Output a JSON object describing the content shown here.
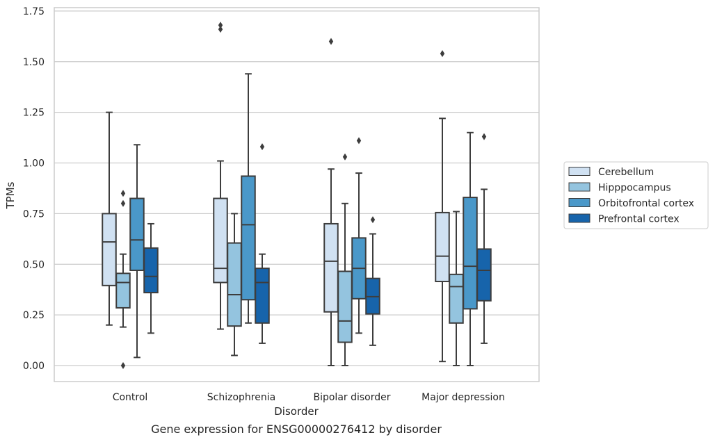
{
  "chart_data": {
    "type": "box",
    "caption": "Gene expression for ENSG00000276412 by disorder",
    "xlabel": "Disorder",
    "ylabel": "TPMs",
    "ylim": [
      -0.08,
      1.77
    ],
    "yticks": [
      0.0,
      0.25,
      0.5,
      0.75,
      1.0,
      1.25,
      1.5,
      1.75
    ],
    "ytick_labels": [
      "0.00",
      "0.25",
      "0.50",
      "0.75",
      "1.00",
      "1.25",
      "1.50",
      "1.75"
    ],
    "grid": "horizontal",
    "legend_position": "right",
    "categories": [
      "Control",
      "Schizophrenia",
      "Bipolar disorder",
      "Major depression"
    ],
    "series": [
      {
        "name": "Cerebellum",
        "color": "#d0e1f2",
        "boxes": [
          {
            "whislo": 0.2,
            "q1": 0.395,
            "med": 0.61,
            "q3": 0.75,
            "whishi": 1.25,
            "fliers": []
          },
          {
            "whislo": 0.18,
            "q1": 0.41,
            "med": 0.48,
            "q3": 0.825,
            "whishi": 1.01,
            "fliers": [
              1.66,
              1.68
            ]
          },
          {
            "whislo": 0.0,
            "q1": 0.265,
            "med": 0.515,
            "q3": 0.7,
            "whishi": 0.97,
            "fliers": [
              1.6
            ]
          },
          {
            "whislo": 0.02,
            "q1": 0.415,
            "med": 0.54,
            "q3": 0.755,
            "whishi": 1.22,
            "fliers": [
              1.54
            ]
          }
        ]
      },
      {
        "name": "Hipppocampus",
        "color": "#94c4df",
        "boxes": [
          {
            "whislo": 0.19,
            "q1": 0.285,
            "med": 0.41,
            "q3": 0.455,
            "whishi": 0.55,
            "fliers": [
              0.0,
              0.8,
              0.85
            ]
          },
          {
            "whislo": 0.05,
            "q1": 0.195,
            "med": 0.35,
            "q3": 0.605,
            "whishi": 0.75,
            "fliers": []
          },
          {
            "whislo": 0.0,
            "q1": 0.115,
            "med": 0.22,
            "q3": 0.465,
            "whishi": 0.8,
            "fliers": [
              1.03
            ]
          },
          {
            "whislo": 0.0,
            "q1": 0.21,
            "med": 0.39,
            "q3": 0.45,
            "whishi": 0.76,
            "fliers": []
          }
        ]
      },
      {
        "name": "Orbitofrontal cortex",
        "color": "#4a98c9",
        "boxes": [
          {
            "whislo": 0.04,
            "q1": 0.47,
            "med": 0.62,
            "q3": 0.825,
            "whishi": 1.09,
            "fliers": []
          },
          {
            "whislo": 0.21,
            "q1": 0.325,
            "med": 0.695,
            "q3": 0.935,
            "whishi": 1.44,
            "fliers": []
          },
          {
            "whislo": 0.16,
            "q1": 0.33,
            "med": 0.48,
            "q3": 0.63,
            "whishi": 0.95,
            "fliers": [
              1.11
            ]
          },
          {
            "whislo": 0.0,
            "q1": 0.28,
            "med": 0.49,
            "q3": 0.83,
            "whishi": 1.15,
            "fliers": []
          }
        ]
      },
      {
        "name": "Prefrontal cortex",
        "color": "#1764ab",
        "boxes": [
          {
            "whislo": 0.16,
            "q1": 0.36,
            "med": 0.44,
            "q3": 0.58,
            "whishi": 0.7,
            "fliers": []
          },
          {
            "whislo": 0.11,
            "q1": 0.21,
            "med": 0.41,
            "q3": 0.48,
            "whishi": 0.55,
            "fliers": [
              1.08
            ]
          },
          {
            "whislo": 0.1,
            "q1": 0.255,
            "med": 0.34,
            "q3": 0.43,
            "whishi": 0.65,
            "fliers": [
              0.72
            ]
          },
          {
            "whislo": 0.11,
            "q1": 0.32,
            "med": 0.47,
            "q3": 0.575,
            "whishi": 0.87,
            "fliers": [
              1.13
            ]
          }
        ]
      }
    ]
  }
}
